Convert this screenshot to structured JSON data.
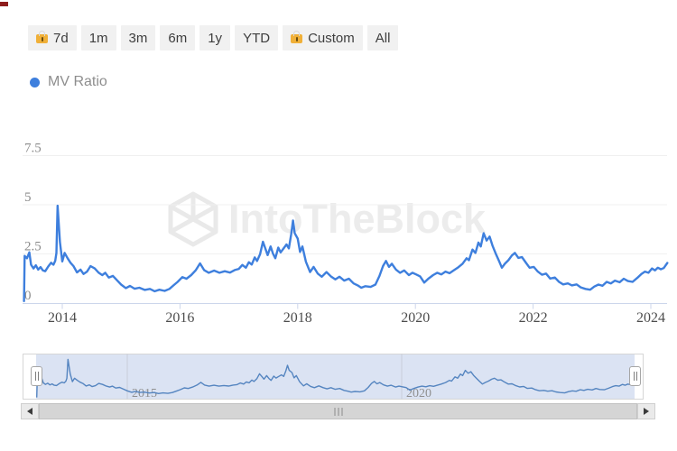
{
  "window": {
    "marker_color": "#8e1c1c",
    "marker_icon": "recording-marker-icon"
  },
  "toolbar": {
    "ranges": [
      {
        "label": "7d",
        "locked": true
      },
      {
        "label": "1m",
        "locked": false
      },
      {
        "label": "3m",
        "locked": false
      },
      {
        "label": "6m",
        "locked": false
      },
      {
        "label": "1y",
        "locked": false
      },
      {
        "label": "YTD",
        "locked": false
      },
      {
        "label": "Custom",
        "locked": true
      },
      {
        "label": "All",
        "locked": false
      }
    ],
    "lock_icon": "lock-icon",
    "lock_color": "#f0b038"
  },
  "legend": {
    "label": "MV Ratio",
    "dot_color": "#3e7fdd"
  },
  "watermark": {
    "text": "IntoTheBlock",
    "logo_icon": "intotheblock-cube-logo-icon",
    "color": "#ececec"
  },
  "chart_data": {
    "type": "line",
    "title": "",
    "xlabel": "",
    "ylabel": "",
    "grid": "horizontal",
    "legend_position": "top-left",
    "xlim": [
      2013.33,
      2024.28
    ],
    "ylim": [
      0,
      8
    ],
    "x_ticks": [
      2014,
      2016,
      2018,
      2020,
      2022,
      2024
    ],
    "y_ticks": [
      0,
      2.5,
      5,
      7.5
    ],
    "y_tick_labels": [
      "0",
      "2.5",
      "5",
      "7.5"
    ],
    "series": [
      {
        "name": "MV Ratio",
        "color": "#3e7fdd",
        "points": [
          [
            2013.35,
            0.1
          ],
          [
            2013.36,
            2.4
          ],
          [
            2013.4,
            2.28
          ],
          [
            2013.44,
            2.58
          ],
          [
            2013.47,
            1.95
          ],
          [
            2013.51,
            1.76
          ],
          [
            2013.55,
            1.92
          ],
          [
            2013.59,
            1.7
          ],
          [
            2013.63,
            1.83
          ],
          [
            2013.67,
            1.66
          ],
          [
            2013.71,
            1.62
          ],
          [
            2013.76,
            1.86
          ],
          [
            2013.81,
            2.05
          ],
          [
            2013.85,
            1.95
          ],
          [
            2013.88,
            2.15
          ],
          [
            2013.9,
            2.55
          ],
          [
            2013.92,
            4.95
          ],
          [
            2013.96,
            3.1
          ],
          [
            2014.0,
            2.12
          ],
          [
            2014.04,
            2.55
          ],
          [
            2014.09,
            2.28
          ],
          [
            2014.14,
            2.05
          ],
          [
            2014.19,
            1.88
          ],
          [
            2014.25,
            1.56
          ],
          [
            2014.31,
            1.7
          ],
          [
            2014.36,
            1.48
          ],
          [
            2014.42,
            1.6
          ],
          [
            2014.48,
            1.88
          ],
          [
            2014.55,
            1.76
          ],
          [
            2014.62,
            1.54
          ],
          [
            2014.68,
            1.42
          ],
          [
            2014.73,
            1.54
          ],
          [
            2014.79,
            1.3
          ],
          [
            2014.86,
            1.38
          ],
          [
            2014.93,
            1.16
          ],
          [
            2015.0,
            0.94
          ],
          [
            2015.08,
            0.76
          ],
          [
            2015.15,
            0.87
          ],
          [
            2015.23,
            0.73
          ],
          [
            2015.31,
            0.78
          ],
          [
            2015.4,
            0.67
          ],
          [
            2015.49,
            0.72
          ],
          [
            2015.57,
            0.6
          ],
          [
            2015.65,
            0.68
          ],
          [
            2015.74,
            0.62
          ],
          [
            2015.82,
            0.72
          ],
          [
            2015.89,
            0.9
          ],
          [
            2015.96,
            1.08
          ],
          [
            2016.04,
            1.32
          ],
          [
            2016.11,
            1.24
          ],
          [
            2016.19,
            1.42
          ],
          [
            2016.27,
            1.68
          ],
          [
            2016.34,
            2.02
          ],
          [
            2016.41,
            1.68
          ],
          [
            2016.49,
            1.54
          ],
          [
            2016.58,
            1.65
          ],
          [
            2016.67,
            1.54
          ],
          [
            2016.76,
            1.62
          ],
          [
            2016.85,
            1.55
          ],
          [
            2016.93,
            1.68
          ],
          [
            2017.0,
            1.74
          ],
          [
            2017.06,
            1.94
          ],
          [
            2017.12,
            1.8
          ],
          [
            2017.17,
            2.08
          ],
          [
            2017.22,
            1.96
          ],
          [
            2017.27,
            2.32
          ],
          [
            2017.31,
            2.14
          ],
          [
            2017.36,
            2.48
          ],
          [
            2017.41,
            3.12
          ],
          [
            2017.45,
            2.78
          ],
          [
            2017.49,
            2.44
          ],
          [
            2017.54,
            2.88
          ],
          [
            2017.58,
            2.52
          ],
          [
            2017.62,
            2.28
          ],
          [
            2017.67,
            2.82
          ],
          [
            2017.71,
            2.58
          ],
          [
            2017.76,
            2.78
          ],
          [
            2017.81,
            2.98
          ],
          [
            2017.85,
            2.78
          ],
          [
            2017.89,
            3.5
          ],
          [
            2017.92,
            4.2
          ],
          [
            2017.95,
            3.55
          ],
          [
            2018.0,
            3.28
          ],
          [
            2018.04,
            2.6
          ],
          [
            2018.08,
            2.88
          ],
          [
            2018.14,
            2.1
          ],
          [
            2018.21,
            1.58
          ],
          [
            2018.27,
            1.84
          ],
          [
            2018.34,
            1.5
          ],
          [
            2018.41,
            1.34
          ],
          [
            2018.49,
            1.58
          ],
          [
            2018.57,
            1.34
          ],
          [
            2018.64,
            1.2
          ],
          [
            2018.71,
            1.34
          ],
          [
            2018.79,
            1.14
          ],
          [
            2018.87,
            1.24
          ],
          [
            2018.95,
            1.0
          ],
          [
            2019.02,
            0.9
          ],
          [
            2019.08,
            0.78
          ],
          [
            2019.15,
            0.86
          ],
          [
            2019.24,
            0.82
          ],
          [
            2019.32,
            0.94
          ],
          [
            2019.39,
            1.38
          ],
          [
            2019.45,
            1.88
          ],
          [
            2019.5,
            2.14
          ],
          [
            2019.55,
            1.84
          ],
          [
            2019.6,
            2.0
          ],
          [
            2019.67,
            1.7
          ],
          [
            2019.74,
            1.54
          ],
          [
            2019.81,
            1.66
          ],
          [
            2019.89,
            1.42
          ],
          [
            2019.95,
            1.54
          ],
          [
            2020.01,
            1.46
          ],
          [
            2020.08,
            1.36
          ],
          [
            2020.15,
            1.04
          ],
          [
            2020.22,
            1.24
          ],
          [
            2020.3,
            1.42
          ],
          [
            2020.37,
            1.54
          ],
          [
            2020.44,
            1.46
          ],
          [
            2020.51,
            1.6
          ],
          [
            2020.58,
            1.52
          ],
          [
            2020.65,
            1.66
          ],
          [
            2020.72,
            1.8
          ],
          [
            2020.8,
            2.0
          ],
          [
            2020.87,
            2.28
          ],
          [
            2020.91,
            2.18
          ],
          [
            2020.97,
            2.72
          ],
          [
            2021.02,
            2.55
          ],
          [
            2021.07,
            3.08
          ],
          [
            2021.11,
            2.88
          ],
          [
            2021.16,
            3.55
          ],
          [
            2021.21,
            3.18
          ],
          [
            2021.26,
            3.38
          ],
          [
            2021.31,
            2.92
          ],
          [
            2021.37,
            2.48
          ],
          [
            2021.42,
            2.14
          ],
          [
            2021.47,
            1.8
          ],
          [
            2021.52,
            2.0
          ],
          [
            2021.58,
            2.18
          ],
          [
            2021.64,
            2.42
          ],
          [
            2021.69,
            2.55
          ],
          [
            2021.75,
            2.3
          ],
          [
            2021.81,
            2.34
          ],
          [
            2021.88,
            2.04
          ],
          [
            2021.94,
            1.8
          ],
          [
            2022.01,
            1.84
          ],
          [
            2022.08,
            1.6
          ],
          [
            2022.15,
            1.44
          ],
          [
            2022.22,
            1.5
          ],
          [
            2022.29,
            1.25
          ],
          [
            2022.37,
            1.3
          ],
          [
            2022.44,
            1.08
          ],
          [
            2022.51,
            0.95
          ],
          [
            2022.59,
            1.0
          ],
          [
            2022.66,
            0.9
          ],
          [
            2022.74,
            0.95
          ],
          [
            2022.81,
            0.8
          ],
          [
            2022.89,
            0.72
          ],
          [
            2022.97,
            0.68
          ],
          [
            2023.04,
            0.84
          ],
          [
            2023.11,
            0.94
          ],
          [
            2023.18,
            0.88
          ],
          [
            2023.25,
            1.08
          ],
          [
            2023.32,
            1.0
          ],
          [
            2023.39,
            1.14
          ],
          [
            2023.47,
            1.06
          ],
          [
            2023.54,
            1.24
          ],
          [
            2023.61,
            1.12
          ],
          [
            2023.69,
            1.08
          ],
          [
            2023.77,
            1.28
          ],
          [
            2023.84,
            1.48
          ],
          [
            2023.9,
            1.6
          ],
          [
            2023.96,
            1.54
          ],
          [
            2024.02,
            1.76
          ],
          [
            2024.07,
            1.66
          ],
          [
            2024.12,
            1.8
          ],
          [
            2024.17,
            1.72
          ],
          [
            2024.22,
            1.78
          ],
          [
            2024.28,
            2.04
          ]
        ]
      }
    ]
  },
  "navigator": {
    "labels": [
      "2015",
      "2020"
    ],
    "label_years": [
      2015,
      2020
    ],
    "mask_color": "#dbe3f3",
    "line_color": "#5585c0",
    "handle_icon": "drag-handle-icon"
  },
  "scrollbar": {
    "left_arrow_icon": "scroll-left-arrow-icon",
    "right_arrow_icon": "scroll-right-arrow-icon",
    "grip_icon": "grip-bars-icon"
  }
}
